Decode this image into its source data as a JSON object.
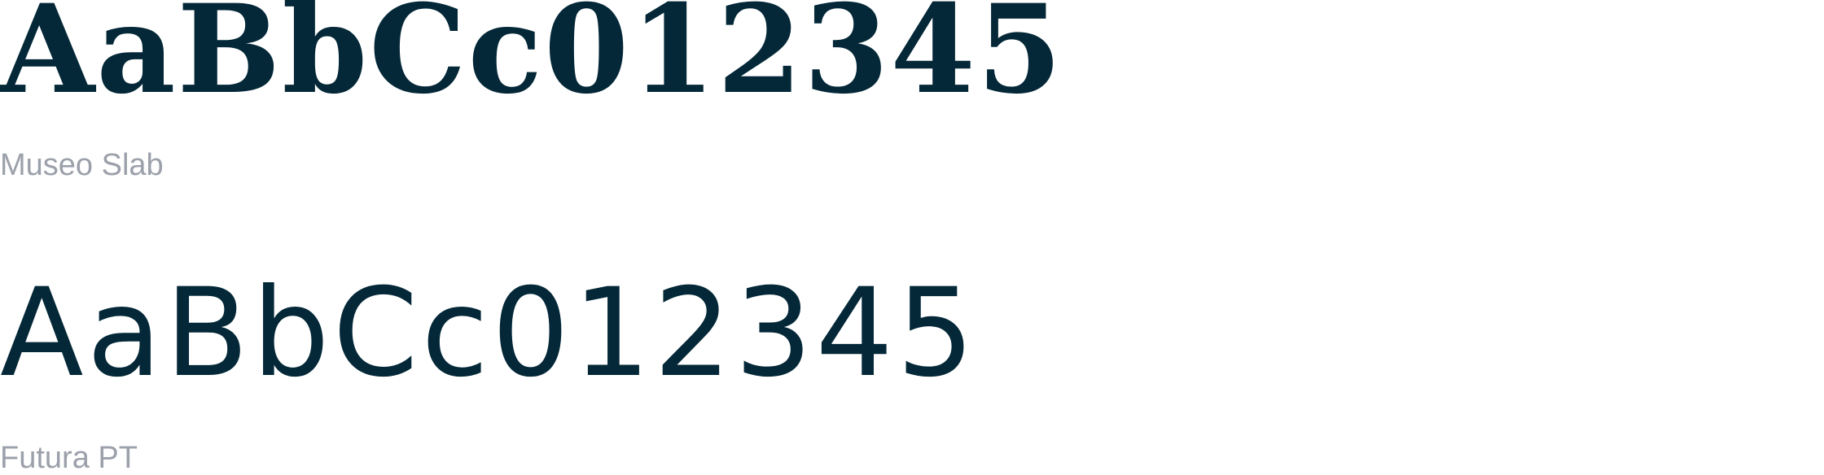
{
  "colors": {
    "specimen_text": "#042838",
    "label_text": "#9ba0aa",
    "background": "#ffffff"
  },
  "specimens": [
    {
      "sample": "AaBbCc012345",
      "font_name": "Museo Slab"
    },
    {
      "sample": "AaBbCc012345",
      "font_name": "Futura PT"
    }
  ]
}
